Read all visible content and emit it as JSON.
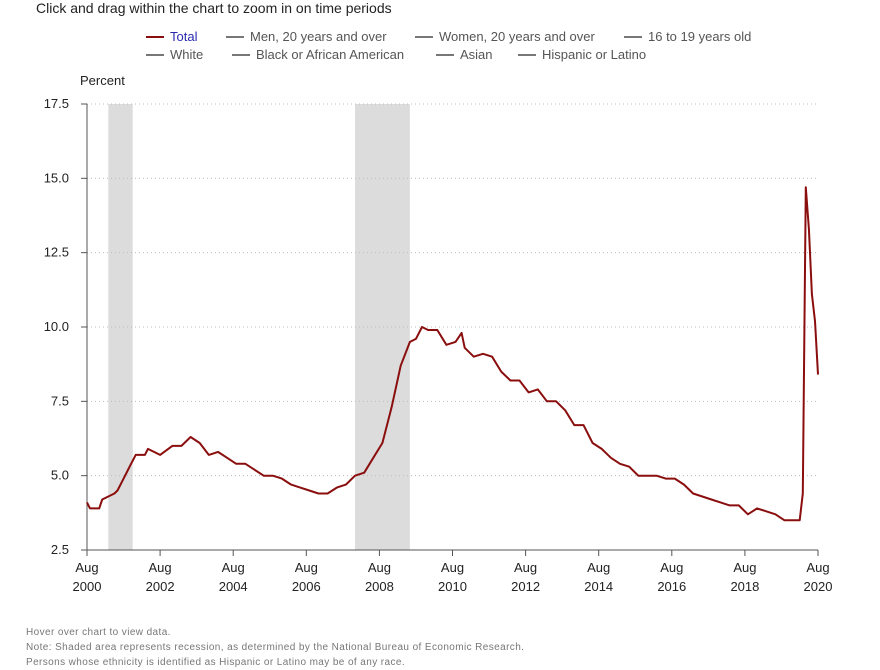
{
  "instruction": "Click and drag within the chart to zoom in on time periods",
  "legend": [
    {
      "label": "Total",
      "active": true
    },
    {
      "label": "Men, 20 years and over",
      "active": false
    },
    {
      "label": "Women, 20 years and over",
      "active": false
    },
    {
      "label": "16 to 19 years old",
      "active": false
    },
    {
      "label": "White",
      "active": false
    },
    {
      "label": "Black or African American",
      "active": false
    },
    {
      "label": "Asian",
      "active": false
    },
    {
      "label": "Hispanic or Latino",
      "active": false
    }
  ],
  "notes": [
    "Hover over chart to view data.",
    "Note: Shaded area represents recession, as determined by the National Bureau of Economic Research.",
    "Persons whose ethnicity is identified as Hispanic or Latino may be of any race."
  ],
  "colors": {
    "series": "#8b0e0e",
    "recession": "#dcdcdc",
    "grid": "#bbbbbb",
    "axis": "#555555"
  },
  "chart_data": {
    "type": "line",
    "ylabel": "Percent",
    "xlabel": "",
    "ylim": [
      2.5,
      17.5
    ],
    "yticks": [
      "2.5",
      "5.0",
      "7.5",
      "10.0",
      "12.5",
      "15.0",
      "17.5"
    ],
    "xlim": [
      "2000-08",
      "2020-08"
    ],
    "xticks": [
      {
        "month": "Aug",
        "year": "2000"
      },
      {
        "month": "Aug",
        "year": "2002"
      },
      {
        "month": "Aug",
        "year": "2004"
      },
      {
        "month": "Aug",
        "year": "2006"
      },
      {
        "month": "Aug",
        "year": "2008"
      },
      {
        "month": "Aug",
        "year": "2010"
      },
      {
        "month": "Aug",
        "year": "2012"
      },
      {
        "month": "Aug",
        "year": "2014"
      },
      {
        "month": "Aug",
        "year": "2016"
      },
      {
        "month": "Aug",
        "year": "2018"
      },
      {
        "month": "Aug",
        "year": "2020"
      }
    ],
    "grid": "horizontal dotted",
    "recessions": [
      [
        "2001-03",
        "2001-11"
      ],
      [
        "2007-12",
        "2009-06"
      ]
    ],
    "series": [
      {
        "name": "Total",
        "points": [
          [
            "2000-08",
            4.1
          ],
          [
            "2000-09",
            3.9
          ],
          [
            "2000-12",
            3.9
          ],
          [
            "2001-01",
            4.2
          ],
          [
            "2001-03",
            4.3
          ],
          [
            "2001-05",
            4.4
          ],
          [
            "2001-06",
            4.5
          ],
          [
            "2001-08",
            4.9
          ],
          [
            "2001-10",
            5.3
          ],
          [
            "2001-12",
            5.7
          ],
          [
            "2002-03",
            5.7
          ],
          [
            "2002-04",
            5.9
          ],
          [
            "2002-08",
            5.7
          ],
          [
            "2002-12",
            6.0
          ],
          [
            "2003-03",
            6.0
          ],
          [
            "2003-06",
            6.3
          ],
          [
            "2003-09",
            6.1
          ],
          [
            "2003-12",
            5.7
          ],
          [
            "2004-03",
            5.8
          ],
          [
            "2004-06",
            5.6
          ],
          [
            "2004-09",
            5.4
          ],
          [
            "2004-12",
            5.4
          ],
          [
            "2005-03",
            5.2
          ],
          [
            "2005-06",
            5.0
          ],
          [
            "2005-09",
            5.0
          ],
          [
            "2005-12",
            4.9
          ],
          [
            "2006-03",
            4.7
          ],
          [
            "2006-06",
            4.6
          ],
          [
            "2006-09",
            4.5
          ],
          [
            "2006-12",
            4.4
          ],
          [
            "2007-03",
            4.4
          ],
          [
            "2007-06",
            4.6
          ],
          [
            "2007-09",
            4.7
          ],
          [
            "2007-12",
            5.0
          ],
          [
            "2008-03",
            5.1
          ],
          [
            "2008-06",
            5.6
          ],
          [
            "2008-09",
            6.1
          ],
          [
            "2008-12",
            7.3
          ],
          [
            "2009-03",
            8.7
          ],
          [
            "2009-06",
            9.5
          ],
          [
            "2009-08",
            9.6
          ],
          [
            "2009-10",
            10.0
          ],
          [
            "2009-12",
            9.9
          ],
          [
            "2010-03",
            9.9
          ],
          [
            "2010-06",
            9.4
          ],
          [
            "2010-09",
            9.5
          ],
          [
            "2010-11",
            9.8
          ],
          [
            "2010-12",
            9.3
          ],
          [
            "2011-03",
            9.0
          ],
          [
            "2011-06",
            9.1
          ],
          [
            "2011-09",
            9.0
          ],
          [
            "2011-12",
            8.5
          ],
          [
            "2012-03",
            8.2
          ],
          [
            "2012-06",
            8.2
          ],
          [
            "2012-09",
            7.8
          ],
          [
            "2012-12",
            7.9
          ],
          [
            "2013-03",
            7.5
          ],
          [
            "2013-06",
            7.5
          ],
          [
            "2013-09",
            7.2
          ],
          [
            "2013-12",
            6.7
          ],
          [
            "2014-03",
            6.7
          ],
          [
            "2014-06",
            6.1
          ],
          [
            "2014-09",
            5.9
          ],
          [
            "2014-12",
            5.6
          ],
          [
            "2015-03",
            5.4
          ],
          [
            "2015-06",
            5.3
          ],
          [
            "2015-09",
            5.0
          ],
          [
            "2015-12",
            5.0
          ],
          [
            "2016-03",
            5.0
          ],
          [
            "2016-06",
            4.9
          ],
          [
            "2016-09",
            4.9
          ],
          [
            "2016-12",
            4.7
          ],
          [
            "2017-03",
            4.4
          ],
          [
            "2017-06",
            4.3
          ],
          [
            "2017-09",
            4.2
          ],
          [
            "2017-12",
            4.1
          ],
          [
            "2018-03",
            4.0
          ],
          [
            "2018-06",
            4.0
          ],
          [
            "2018-09",
            3.7
          ],
          [
            "2018-12",
            3.9
          ],
          [
            "2019-03",
            3.8
          ],
          [
            "2019-06",
            3.7
          ],
          [
            "2019-09",
            3.5
          ],
          [
            "2019-12",
            3.5
          ],
          [
            "2020-02",
            3.5
          ],
          [
            "2020-03",
            4.4
          ],
          [
            "2020-04",
            14.7
          ],
          [
            "2020-05",
            13.3
          ],
          [
            "2020-06",
            11.1
          ],
          [
            "2020-07",
            10.2
          ],
          [
            "2020-08",
            8.4
          ]
        ]
      }
    ]
  }
}
